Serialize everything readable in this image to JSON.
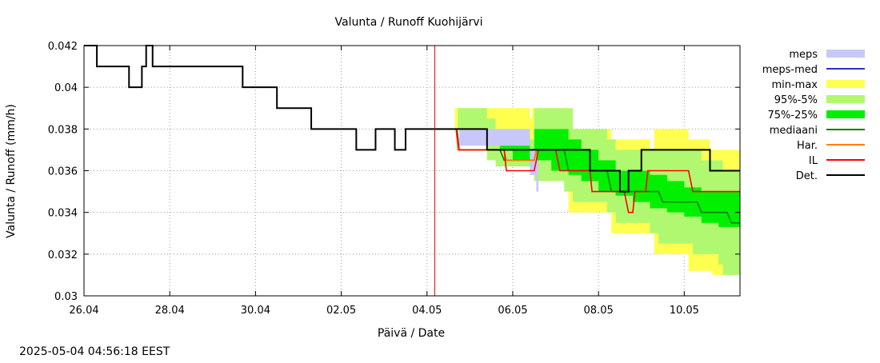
{
  "chart_data": {
    "type": "area",
    "title": "Valunta / Runoff  Kuohijärvi",
    "xlabel": "Päivä / Date",
    "ylabel": "Valunta / Runoff (mm/h)",
    "timestamp": "2025-05-04 04:56:18 EEST",
    "x_unit": "days since 26.04",
    "xlim": [
      0,
      15.3
    ],
    "ylim": [
      0.03,
      0.042
    ],
    "x_ticks": [
      {
        "x": 0,
        "label": "26.04"
      },
      {
        "x": 2,
        "label": "28.04"
      },
      {
        "x": 4,
        "label": "30.04"
      },
      {
        "x": 6,
        "label": "02.05"
      },
      {
        "x": 8,
        "label": "04.05"
      },
      {
        "x": 10,
        "label": "06.05"
      },
      {
        "x": 12,
        "label": "08.05"
      },
      {
        "x": 14,
        "label": "10.05"
      }
    ],
    "y_ticks": [
      {
        "y": 0.03,
        "label": "0.03"
      },
      {
        "y": 0.032,
        "label": "0.032"
      },
      {
        "y": 0.034,
        "label": "0.034"
      },
      {
        "y": 0.036,
        "label": "0.036"
      },
      {
        "y": 0.038,
        "label": "0.038"
      },
      {
        "y": 0.04,
        "label": "0.04"
      },
      {
        "y": 0.042,
        "label": "0.042"
      }
    ],
    "grid": true,
    "forecast_start_x": 8.18,
    "legend_position": "right",
    "legend": [
      {
        "name": "meps",
        "color": "#c8c8f8",
        "kind": "band"
      },
      {
        "name": "meps-med",
        "color": "#3030c0",
        "kind": "line"
      },
      {
        "name": "min-max",
        "color": "#ffff50",
        "kind": "band"
      },
      {
        "name": "95%-5%",
        "color": "#b0f870",
        "kind": "band"
      },
      {
        "name": "75%-25%",
        "color": "#00f000",
        "kind": "band"
      },
      {
        "name": "mediaani",
        "color": "#008000",
        "kind": "line"
      },
      {
        "name": "Har.",
        "color": "#ff8000",
        "kind": "line"
      },
      {
        "name": "IL",
        "color": "#ff0000",
        "kind": "line"
      },
      {
        "name": "Det.",
        "color": "#000000",
        "kind": "line"
      }
    ],
    "series": [
      {
        "name": "min-max",
        "kind": "band",
        "color": "#ffff50",
        "x": [
          8.65,
          8.75,
          9.8,
          10.4,
          10.45,
          11.2,
          11.3,
          12.2,
          12.3,
          13.2,
          13.3,
          14.0,
          14.1,
          14.6,
          14.65,
          15.3
        ],
        "lower": [
          0.038,
          0.0375,
          0.0365,
          0.0362,
          0.0358,
          0.035,
          0.034,
          0.034,
          0.033,
          0.033,
          0.032,
          0.032,
          0.0312,
          0.0312,
          0.031,
          0.031
        ],
        "upper": [
          0.039,
          0.039,
          0.039,
          0.0385,
          0.039,
          0.039,
          0.038,
          0.038,
          0.0375,
          0.037,
          0.038,
          0.038,
          0.0375,
          0.037,
          0.037,
          0.037
        ]
      },
      {
        "name": "95%-5%",
        "kind": "band",
        "color": "#b0f870",
        "x": [
          8.72,
          8.8,
          9.4,
          9.6,
          10.4,
          10.5,
          11.2,
          11.4,
          12.2,
          12.4,
          13.2,
          13.4,
          14.2,
          14.4,
          14.8,
          14.9,
          15.3
        ],
        "lower": [
          0.038,
          0.0375,
          0.0365,
          0.0362,
          0.036,
          0.0355,
          0.035,
          0.0345,
          0.034,
          0.0335,
          0.033,
          0.0325,
          0.032,
          0.032,
          0.0315,
          0.031,
          0.031
        ],
        "upper": [
          0.039,
          0.039,
          0.0385,
          0.038,
          0.0375,
          0.039,
          0.039,
          0.038,
          0.0375,
          0.037,
          0.037,
          0.037,
          0.037,
          0.0365,
          0.0365,
          0.036,
          0.036
        ]
      },
      {
        "name": "75%-25%",
        "kind": "band",
        "color": "#00f000",
        "x": [
          9.4,
          9.7,
          10.0,
          10.4,
          10.5,
          10.9,
          11.3,
          11.6,
          12.0,
          12.4,
          12.8,
          13.2,
          13.6,
          14.0,
          14.4,
          14.8,
          15.3
        ],
        "lower": [
          0.0375,
          0.037,
          0.0365,
          0.036,
          0.0365,
          0.036,
          0.0358,
          0.0355,
          0.035,
          0.0348,
          0.0345,
          0.0342,
          0.034,
          0.0338,
          0.0335,
          0.0333,
          0.033
        ],
        "upper": [
          0.0378,
          0.0378,
          0.0375,
          0.037,
          0.038,
          0.038,
          0.0375,
          0.037,
          0.0365,
          0.036,
          0.036,
          0.0358,
          0.0355,
          0.0352,
          0.035,
          0.035,
          0.035
        ]
      },
      {
        "name": "meps",
        "kind": "band",
        "color": "#c8c8f8",
        "x": [
          8.6,
          8.75,
          10.4,
          10.55,
          10.6
        ],
        "lower": [
          0.038,
          0.0372,
          0.0358,
          0.035,
          0.035
        ],
        "upper": [
          0.038,
          0.038,
          0.037,
          0.0365,
          0.036
        ]
      },
      {
        "name": "mediaani",
        "kind": "line",
        "color": "#008000",
        "x": [
          8.2,
          8.7,
          8.75,
          9.7,
          9.8,
          10.5,
          10.55,
          11.2,
          11.3,
          12.2,
          12.3,
          13.4,
          13.5,
          14.3,
          14.4,
          15.0,
          15.1,
          15.3
        ],
        "y": [
          0.038,
          0.038,
          0.037,
          0.037,
          0.0365,
          0.0365,
          0.037,
          0.037,
          0.036,
          0.036,
          0.035,
          0.035,
          0.0345,
          0.0345,
          0.034,
          0.034,
          0.0335,
          0.0335
        ]
      },
      {
        "name": "Har.",
        "kind": "line",
        "color": "#ff8000",
        "x": [
          8.2,
          8.68,
          8.72,
          9.8,
          9.85,
          10.5,
          10.55,
          10.6
        ],
        "y": [
          0.038,
          0.038,
          0.037,
          0.037,
          0.0365,
          0.0365,
          0.037,
          0.037
        ]
      },
      {
        "name": "IL",
        "kind": "line",
        "color": "#ff0000",
        "x": [
          8.2,
          8.68,
          8.75,
          9.8,
          9.85,
          10.5,
          10.6,
          11.0,
          11.1,
          11.8,
          11.85,
          12.6,
          12.7,
          12.8,
          12.85,
          13.1,
          13.15,
          14.1,
          14.2,
          15.3
        ],
        "y": [
          0.038,
          0.038,
          0.037,
          0.037,
          0.036,
          0.036,
          0.037,
          0.037,
          0.036,
          0.036,
          0.035,
          0.035,
          0.034,
          0.034,
          0.035,
          0.035,
          0.036,
          0.036,
          0.035,
          0.035
        ]
      },
      {
        "name": "Det.",
        "kind": "line",
        "color": "#000000",
        "x": [
          0.0,
          0.3,
          0.3,
          1.05,
          1.05,
          1.35,
          1.35,
          1.45,
          1.45,
          1.6,
          1.6,
          1.9,
          1.9,
          3.7,
          3.7,
          4.5,
          4.5,
          5.3,
          5.3,
          6.35,
          6.35,
          6.8,
          6.8,
          7.25,
          7.25,
          7.5,
          7.5,
          9.4,
          9.4,
          11.8,
          11.8,
          12.5,
          12.5,
          12.7,
          12.7,
          12.85,
          12.85,
          13.0,
          13.0,
          14.6,
          14.6,
          15.3
        ],
        "y": [
          0.042,
          0.042,
          0.041,
          0.041,
          0.04,
          0.04,
          0.041,
          0.041,
          0.042,
          0.042,
          0.041,
          0.041,
          0.041,
          0.041,
          0.04,
          0.04,
          0.039,
          0.039,
          0.038,
          0.038,
          0.037,
          0.037,
          0.038,
          0.038,
          0.037,
          0.037,
          0.038,
          0.038,
          0.037,
          0.037,
          0.036,
          0.036,
          0.035,
          0.035,
          0.036,
          0.036,
          0.036,
          0.036,
          0.037,
          0.037,
          0.036,
          0.036
        ]
      }
    ]
  }
}
